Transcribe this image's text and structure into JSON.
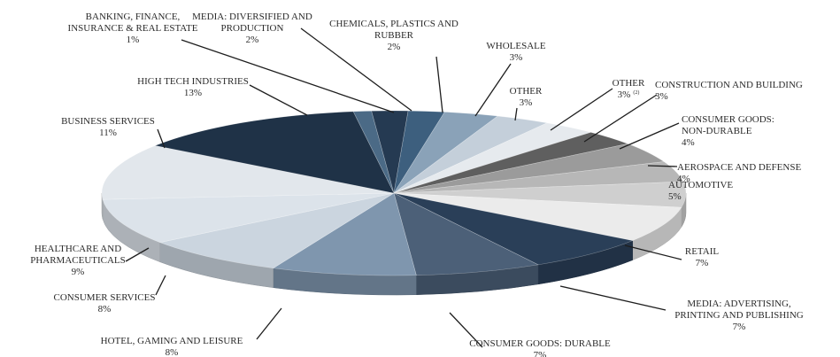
{
  "chart_data": {
    "type": "pie",
    "title": "",
    "slices": [
      {
        "name": "BANKING, FINANCE, INSURANCE & REAL ESTATE",
        "value": 1,
        "label": "1%",
        "color": "#4b6a86"
      },
      {
        "name": "MEDIA: DIVERSIFIED AND PRODUCTION",
        "value": 2,
        "label": "2%",
        "color": "#253a52"
      },
      {
        "name": "CHEMICALS, PLASTICS AND RUBBER",
        "value": 2,
        "label": "2%",
        "color": "#3d5f7e"
      },
      {
        "name": "WHOLESALE",
        "value": 3,
        "label": "3%",
        "color": "#8aa2b8"
      },
      {
        "name": "OTHER",
        "value": 3,
        "label": "3%",
        "color": "#c4cfda"
      },
      {
        "name": "OTHER",
        "value": 3,
        "label": "3%",
        "superscript": "(2)",
        "color": "#e6eaee"
      },
      {
        "name": "CONSTRUCTION AND BUILDING",
        "value": 3,
        "label": "3%",
        "color": "#5f5f5f"
      },
      {
        "name": "CONSUMER GOODS: NON-DURABLE",
        "value": 4,
        "label": "4%",
        "color": "#9b9b9b"
      },
      {
        "name": "AEROSPACE AND DEFENSE",
        "value": 4,
        "label": "4%",
        "color": "#b7b7b7"
      },
      {
        "name": "AUTOMOTIVE",
        "value": 5,
        "label": "5%",
        "color": "#cfcfcf"
      },
      {
        "name": "RETAIL",
        "value": 7,
        "label": "7%",
        "color": "#ebebeb"
      },
      {
        "name": "MEDIA: ADVERTISING, PRINTING AND PUBLISHING",
        "value": 7,
        "label": "7%",
        "color": "#2a3f58"
      },
      {
        "name": "CONSUMER GOODS: DURABLE",
        "value": 7,
        "label": "7%",
        "color": "#4c6078"
      },
      {
        "name": "HOTEL, GAMING AND LEISURE",
        "value": 8,
        "label": "8%",
        "color": "#7f96ae"
      },
      {
        "name": "CONSUMER SERVICES",
        "value": 8,
        "label": "8%",
        "color": "#cbd5df"
      },
      {
        "name": "HEALTHCARE AND PHARMACEUTICALS",
        "value": 9,
        "label": "9%",
        "color": "#dce3ea"
      },
      {
        "name": "BUSINESS SERVICES",
        "value": 11,
        "label": "11%",
        "color": "#e2e7ec"
      },
      {
        "name": "HIGH TECH INDUSTRIES",
        "value": 13,
        "label": "13%",
        "color": "#1f3247"
      }
    ],
    "label_lines": [
      [
        "BANKING, FINANCE,",
        "INSURANCE & REAL ESTATE"
      ],
      [
        "MEDIA: DIVERSIFIED AND",
        "PRODUCTION"
      ],
      [
        "CHEMICALS, PLASTICS AND",
        "RUBBER"
      ],
      [
        "WHOLESALE"
      ],
      [
        "OTHER"
      ],
      [
        "OTHER"
      ],
      [
        "CONSTRUCTION AND BUILDING"
      ],
      [
        "CONSUMER GOODS:",
        "NON-DURABLE"
      ],
      [
        "AEROSPACE AND DEFENSE"
      ],
      [
        "AUTOMOTIVE"
      ],
      [
        "RETAIL"
      ],
      [
        "MEDIA: ADVERTISING,",
        "PRINTING AND PUBLISHING"
      ],
      [
        "CONSUMER GOODS: DURABLE"
      ],
      [
        "HOTEL, GAMING AND LEISURE"
      ],
      [
        "CONSUMER SERVICES"
      ],
      [
        "HEALTHCARE AND",
        "PHARMACEUTICALS"
      ],
      [
        "BUSINESS SERVICES"
      ],
      [
        "HIGH TECH INDUSTRIES"
      ]
    ],
    "style": "3d-tilted",
    "legend": "none"
  }
}
